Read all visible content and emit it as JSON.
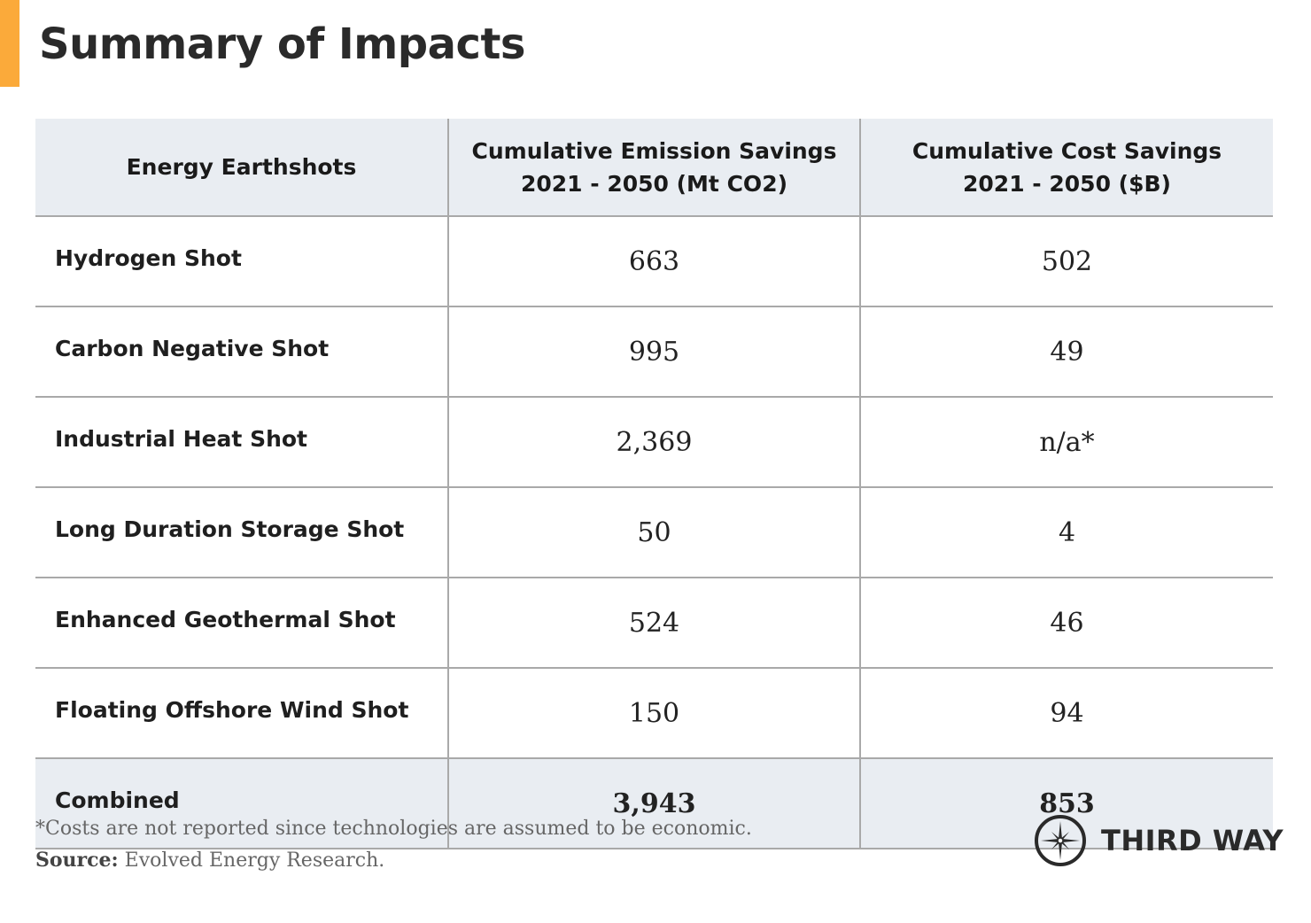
{
  "title": "Summary of Impacts",
  "colors": {
    "accent": "#fbaa3a",
    "header_bg": "#e9edf2"
  },
  "chart_data": {
    "type": "table",
    "title": "Summary of Impacts",
    "columns": [
      "Energy Earthshots",
      "Cumulative Emission Savings 2021 - 2050 (Mt CO2)",
      "Cumulative Cost Savings 2021 - 2050 ($B)"
    ],
    "header": {
      "col1": "Energy Earthshots",
      "col2_line1": "Cumulative Emission Savings",
      "col2_line2": "2021 - 2050 (Mt CO2)",
      "col3_line1": "Cumulative Cost Savings",
      "col3_line2": "2021 - 2050 ($B)"
    },
    "rows": [
      {
        "name": "Hydrogen Shot",
        "emissions": "663",
        "cost": "502"
      },
      {
        "name": "Carbon Negative Shot",
        "emissions": "995",
        "cost": "49"
      },
      {
        "name": "Industrial Heat Shot",
        "emissions": "2,369",
        "cost": "n/a*"
      },
      {
        "name": "Long Duration Storage Shot",
        "emissions": "50",
        "cost": "4"
      },
      {
        "name": "Enhanced Geothermal Shot",
        "emissions": "524",
        "cost": "46"
      },
      {
        "name": "Floating Offshore Wind Shot",
        "emissions": "150",
        "cost": "94"
      }
    ],
    "total": {
      "name": "Combined",
      "emissions": "3,943",
      "cost": "853"
    }
  },
  "footnote": "*Costs are not reported since technologies are assumed to be economic.",
  "source_label": "Source:",
  "source_text": "Evolved Energy Research.",
  "logo": {
    "text": "THIRD WAY",
    "icon": "compass-star-icon"
  }
}
